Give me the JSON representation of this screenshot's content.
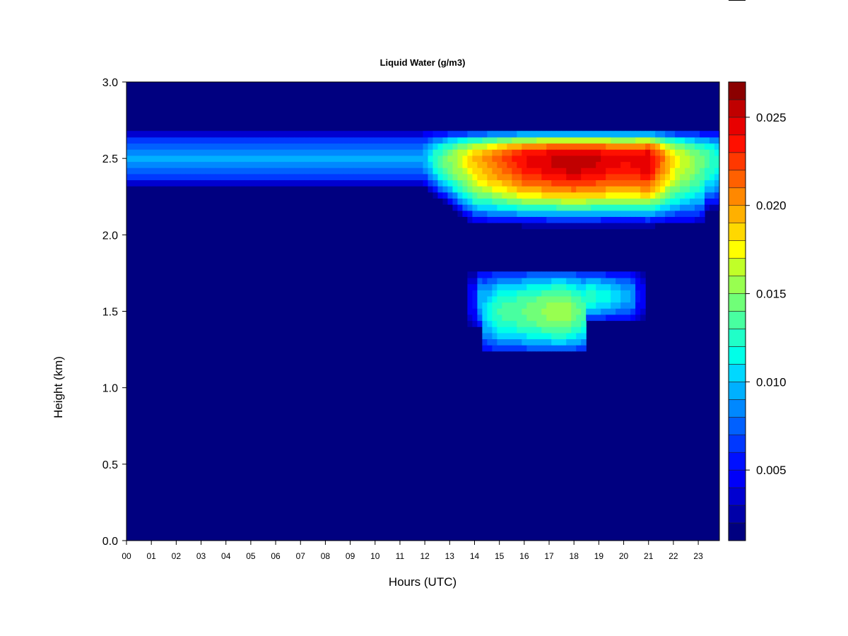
{
  "chart_data": {
    "type": "heatmap",
    "title": "Liquid Water (g/m3)",
    "xlabel": "Hours (UTC)",
    "ylabel": "Height (km)",
    "x_ticks": [
      "00",
      "01",
      "02",
      "03",
      "04",
      "05",
      "06",
      "07",
      "08",
      "09",
      "10",
      "11",
      "12",
      "13",
      "14",
      "15",
      "16",
      "17",
      "18",
      "19",
      "20",
      "21",
      "22",
      "23"
    ],
    "y_ticks": [
      "0.0",
      "0.5",
      "1.0",
      "1.5",
      "2.0",
      "2.5",
      "3.0"
    ],
    "xlim": [
      0,
      23.85
    ],
    "ylim": [
      0,
      3.0
    ],
    "colorbar": {
      "range": [
        0.001,
        0.027
      ],
      "ticks": [
        "0.005",
        "0.010",
        "0.015",
        "0.020",
        "0.025"
      ],
      "tick_values": [
        0.005,
        0.01,
        0.015,
        0.02,
        0.025
      ],
      "colors": [
        "#000080",
        "#0000a8",
        "#0000d0",
        "#0000f8",
        "#0010ff",
        "#0038ff",
        "#0060ff",
        "#0088ff",
        "#00b0ff",
        "#00d8ff",
        "#00ffe8",
        "#20ffc8",
        "#48ffa0",
        "#70ff78",
        "#98ff50",
        "#c0ff28",
        "#ffff00",
        "#ffd800",
        "#ffb000",
        "#ff8800",
        "#ff6000",
        "#ff3800",
        "#ff1000",
        "#e80000",
        "#c00000",
        "#8b0000"
      ]
    },
    "layers": [
      {
        "name": "upper",
        "center_km": 2.5,
        "half_thickness_km": 0.2,
        "x_start": 0,
        "x_end": 23.85,
        "peak_profile": [
          [
            0,
            0.009
          ],
          [
            7,
            0.009
          ],
          [
            11.9,
            0.009
          ],
          [
            12.5,
            0.013
          ],
          [
            14,
            0.019
          ],
          [
            16,
            0.024
          ],
          [
            18,
            0.026
          ],
          [
            20,
            0.024
          ],
          [
            21,
            0.025
          ],
          [
            22,
            0.018
          ],
          [
            23.85,
            0.012
          ]
        ]
      },
      {
        "name": "lower",
        "bottom_km": 1.25,
        "top_km": 1.75,
        "x_start": 13.8,
        "x_end": 20.8,
        "peak_profile": [
          [
            13.8,
            0.008
          ],
          [
            15,
            0.013
          ],
          [
            17.5,
            0.016
          ],
          [
            19,
            0.012
          ],
          [
            20.8,
            0.008
          ]
        ]
      }
    ],
    "grid": false,
    "legend": "colorbar-right"
  }
}
